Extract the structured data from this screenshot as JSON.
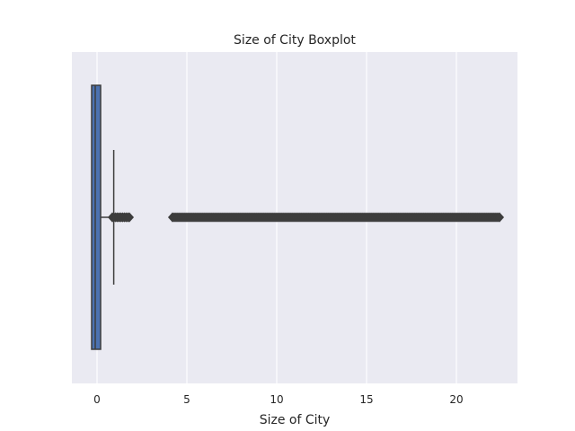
{
  "chart_data": {
    "type": "boxplot",
    "orientation": "horizontal",
    "title": "Size of City Boxplot",
    "xlabel": "Size of City",
    "ylabel": "",
    "xlim": [
      -1.4,
      23.4
    ],
    "xticks": [
      0,
      5,
      10,
      15,
      20
    ],
    "grid": true,
    "colors": {
      "background": "#eaeaf2",
      "grid": "#ffffff",
      "box": "#4c72b0",
      "line": "#3d3d3d"
    },
    "box": {
      "q1": -0.3,
      "median": -0.1,
      "q3": 0.2,
      "whisker_low": -0.3,
      "whisker_high": 0.93
    },
    "outlier_clusters": [
      {
        "min": 0.85,
        "max": 1.8
      },
      {
        "min": 4.2,
        "max": 22.4
      }
    ]
  }
}
